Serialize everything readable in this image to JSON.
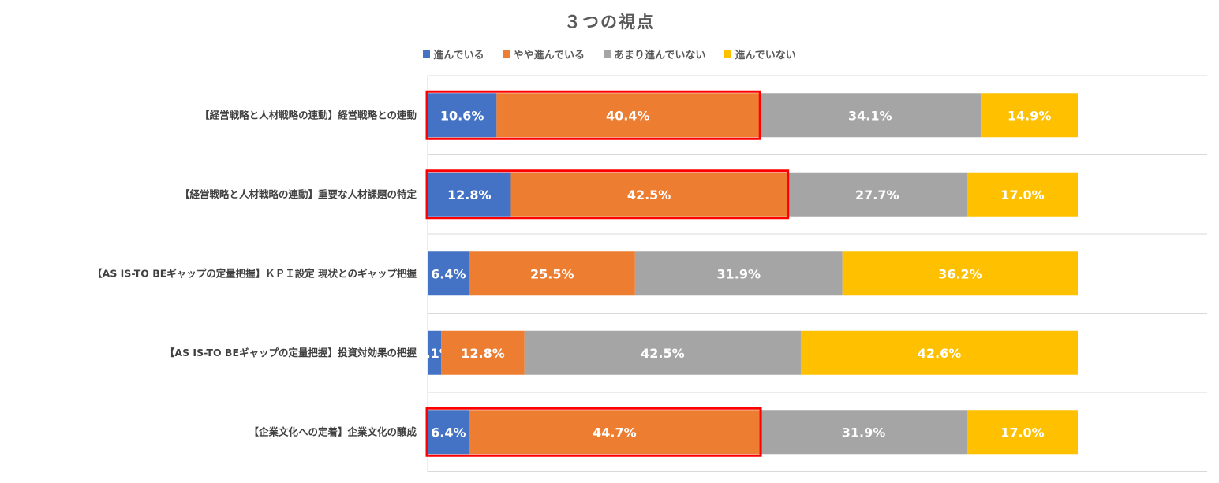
{
  "chart_data": {
    "type": "bar",
    "orientation": "horizontal",
    "stacked": true,
    "title": "３つの視点",
    "categories": [
      "【経営戦略と人材戦略の連動】経営戦略との連動",
      "【経営戦略と人材戦略の連動】重要な人材課題の特定",
      "【AS IS-TO BEギャップの定量把握】ＫＰＩ設定 現状とのギャップ把握",
      "【AS IS-TO BEギャップの定量把握】投資対効果の把握",
      "【企業文化への定着】企業文化の醸成"
    ],
    "series": [
      {
        "name": "進んでいる",
        "color": "#4472C4",
        "values": [
          10.6,
          12.8,
          6.4,
          2.1,
          6.4
        ],
        "labels": [
          "10.6%",
          "12.8%",
          "6.4%",
          "2.1%",
          "6.4%"
        ]
      },
      {
        "name": "やや進んでいる",
        "color": "#ED7D31",
        "values": [
          40.4,
          42.5,
          25.5,
          12.8,
          44.7
        ],
        "labels": [
          "40.4%",
          "42.5%",
          "25.5%",
          "12.8%",
          "44.7%"
        ]
      },
      {
        "name": "あまり進んでいない",
        "color": "#A5A5A5",
        "values": [
          34.1,
          27.7,
          31.9,
          42.5,
          31.9
        ],
        "labels": [
          "34.1%",
          "27.7%",
          "31.9%",
          "42.5%",
          "31.9%"
        ]
      },
      {
        "name": "進んでいない",
        "color": "#FFC000",
        "values": [
          14.9,
          17.0,
          36.2,
          42.6,
          17.0
        ],
        "labels": [
          "14.9%",
          "17.0%",
          "36.2%",
          "42.6%",
          "17.0%"
        ]
      }
    ],
    "xlim": [
      0,
      100
    ],
    "grid": "horizontal-separators",
    "legend_position": "top",
    "highlight": {
      "color": "#FF0000",
      "rows": [
        0,
        1,
        4
      ],
      "series_covered": [
        0,
        1
      ]
    }
  }
}
